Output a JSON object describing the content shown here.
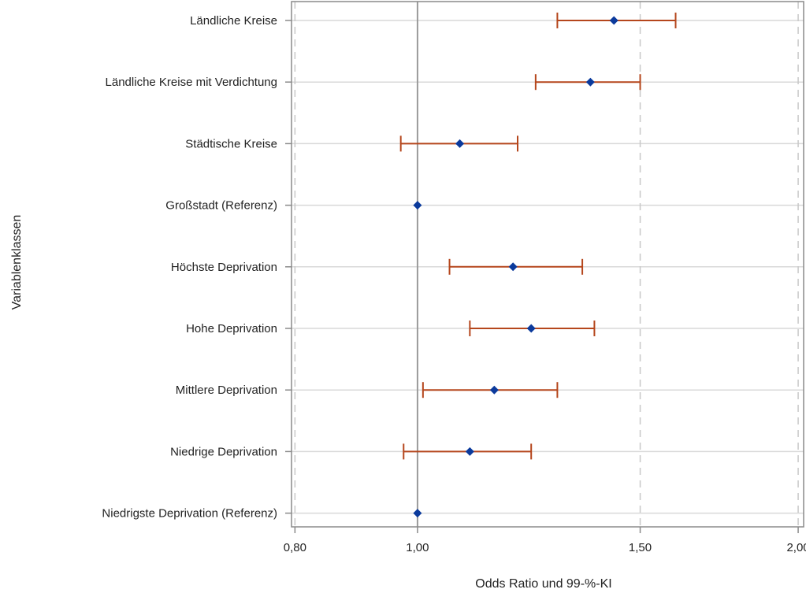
{
  "chart_data": {
    "type": "forest",
    "xlabel": "Odds Ratio und 99-%-KI",
    "ylabel": "Variablenklassen",
    "xscale": "log",
    "xlim": [
      0.795,
      2.02
    ],
    "xticks": [
      {
        "value": 0.8,
        "label": "0,80"
      },
      {
        "value": 1.0,
        "label": "1,00"
      },
      {
        "value": 1.5,
        "label": "1,50"
      },
      {
        "value": 2.0,
        "label": "2,00"
      }
    ],
    "reference_line": 1.0,
    "grid": {
      "vertical_dashed": true,
      "horizontal": true
    },
    "colors": {
      "point": "#0b3a9c",
      "error_bar": "#b5461c",
      "reference_line": "#9a9a9a",
      "grid": "#d9d9d9",
      "frame": "#8a8a8a"
    },
    "rows": [
      {
        "label": "Ländliche Kreise",
        "or": 1.43,
        "lower": 1.29,
        "upper": 1.6
      },
      {
        "label": "Ländliche Kreise mit Verdichtung",
        "or": 1.37,
        "lower": 1.24,
        "upper": 1.5
      },
      {
        "label": "Städtische Kreise",
        "or": 1.08,
        "lower": 0.97,
        "upper": 1.2
      },
      {
        "label": "Großstadt (Referenz)",
        "or": 1.0
      },
      {
        "label": "Höchste Deprivation",
        "or": 1.19,
        "lower": 1.06,
        "upper": 1.35
      },
      {
        "label": "Hohe Deprivation",
        "or": 1.23,
        "lower": 1.1,
        "upper": 1.38
      },
      {
        "label": "Mittlere Deprivation",
        "or": 1.15,
        "lower": 1.01,
        "upper": 1.29
      },
      {
        "label": "Niedrige Deprivation",
        "or": 1.1,
        "lower": 0.975,
        "upper": 1.23
      },
      {
        "label": "Niedrigste Deprivation (Referenz)",
        "or": 1.0
      }
    ]
  }
}
